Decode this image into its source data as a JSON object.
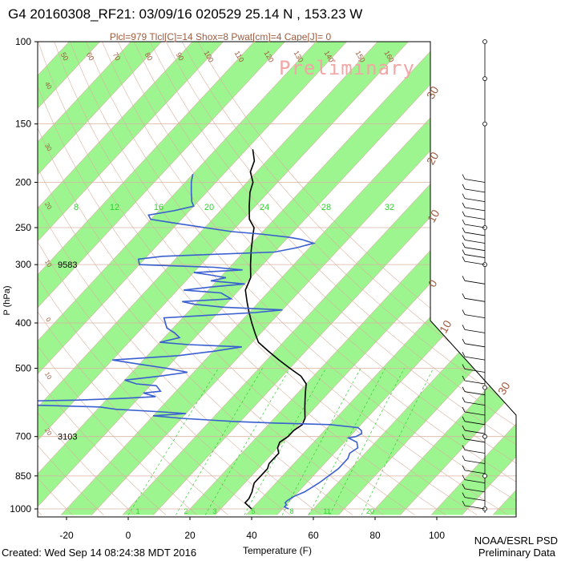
{
  "chart_data": {
    "type": "line",
    "title": "G4 20160308_RF21: 03/09/16 020529  25.14 N , 153.23 W",
    "subtitle": "Plcl=979 Tlcl[C]=14 Shox=8 Pwat[cm]=4 Cape[J]= 0",
    "watermark": "Preliminary",
    "xlabel": "Temperature (F)",
    "ylabel": "P (hPa)",
    "xlim": [
      -28,
      108
    ],
    "ylim": [
      1030,
      100
    ],
    "y_scale": "log",
    "x_ticks": [
      -20,
      0,
      20,
      40,
      60,
      80,
      100
    ],
    "y_ticks": [
      100,
      150,
      200,
      250,
      300,
      400,
      500,
      700,
      850,
      1000
    ],
    "height_labels": [
      {
        "p": 300,
        "text": "9583"
      },
      {
        "p": 700,
        "text": "3103"
      }
    ],
    "mixing_ratio_labels": [
      "1",
      "2",
      "3",
      "5",
      "8",
      "11",
      "20"
    ],
    "isotherm_labels_top": [
      "50",
      "60",
      "70",
      "80",
      "90",
      "100",
      "110",
      "120",
      "130",
      "140",
      "150",
      "160"
    ],
    "isotherm_labels_right": [
      "30",
      "20",
      "10",
      "0",
      "10",
      "30"
    ],
    "green_labels": [
      "8",
      "12",
      "16",
      "20",
      "24",
      "28",
      "32"
    ],
    "adiabat_labels_left": [
      "40",
      "30",
      "20",
      "10",
      "0",
      "10",
      "20"
    ],
    "series": [
      {
        "name": "Temperature",
        "color": "#000000",
        "points": [
          [
            40,
            1000
          ],
          [
            38,
            985
          ],
          [
            36,
            970
          ],
          [
            36,
            950
          ],
          [
            35,
            920
          ],
          [
            34,
            900
          ],
          [
            33,
            880
          ],
          [
            33,
            850
          ],
          [
            33,
            820
          ],
          [
            32,
            800
          ],
          [
            32,
            780
          ],
          [
            32,
            760
          ],
          [
            30,
            740
          ],
          [
            29,
            720
          ],
          [
            30,
            700
          ],
          [
            30,
            680
          ],
          [
            31,
            660
          ],
          [
            30,
            640
          ],
          [
            28,
            620
          ],
          [
            26,
            600
          ],
          [
            24,
            580
          ],
          [
            22,
            560
          ],
          [
            20,
            540
          ],
          [
            16,
            520
          ],
          [
            10,
            500
          ],
          [
            4,
            480
          ],
          [
            -2,
            460
          ],
          [
            -8,
            440
          ],
          [
            -12,
            420
          ],
          [
            -16,
            400
          ],
          [
            -20,
            380
          ],
          [
            -24,
            360
          ],
          [
            -28,
            340
          ],
          [
            -30,
            320
          ],
          [
            -34,
            300
          ],
          [
            -38,
            280
          ],
          [
            -42,
            260
          ],
          [
            -44,
            250
          ],
          [
            -48,
            240
          ],
          [
            -52,
            225
          ],
          [
            -56,
            210
          ],
          [
            -58,
            200
          ],
          [
            -62,
            190
          ],
          [
            -64,
            180
          ],
          [
            -68,
            170
          ]
        ]
      },
      {
        "name": "Dewpoint",
        "color": "#3a5fd0",
        "points": [
          [
            52,
            1000
          ],
          [
            50,
            990
          ],
          [
            50,
            980
          ],
          [
            49,
            970
          ],
          [
            49,
            960
          ],
          [
            50,
            940
          ],
          [
            52,
            920
          ],
          [
            53,
            900
          ],
          [
            54,
            880
          ],
          [
            55,
            850
          ],
          [
            56,
            820
          ],
          [
            56,
            800
          ],
          [
            56,
            780
          ],
          [
            55,
            760
          ],
          [
            56,
            740
          ],
          [
            54,
            720
          ],
          [
            50,
            705
          ],
          [
            52,
            700
          ],
          [
            53,
            690
          ],
          [
            52,
            680
          ],
          [
            50,
            670
          ],
          [
            40,
            660
          ],
          [
            22,
            655
          ],
          [
            8,
            650
          ],
          [
            -10,
            640
          ],
          [
            -20,
            632
          ],
          [
            -10,
            625
          ],
          [
            -18,
            620
          ],
          [
            -34,
            612
          ],
          [
            -40,
            605
          ],
          [
            -60,
            600
          ],
          [
            -80,
            590
          ],
          [
            -50,
            585
          ],
          [
            -35,
            580
          ],
          [
            -25,
            575
          ],
          [
            -30,
            565
          ],
          [
            -25,
            560
          ],
          [
            -28,
            545
          ],
          [
            -35,
            540
          ],
          [
            -40,
            530
          ],
          [
            -30,
            520
          ],
          [
            -22,
            510
          ],
          [
            -30,
            500
          ],
          [
            -40,
            490
          ],
          [
            -50,
            480
          ],
          [
            -30,
            470
          ],
          [
            -20,
            460
          ],
          [
            -12,
            450
          ],
          [
            -30,
            445
          ],
          [
            -40,
            440
          ],
          [
            -35,
            430
          ],
          [
            -38,
            420
          ],
          [
            -42,
            410
          ],
          [
            -44,
            400
          ],
          [
            -46,
            390
          ],
          [
            -18,
            380
          ],
          [
            -10,
            375
          ],
          [
            -30,
            370
          ],
          [
            -40,
            365
          ],
          [
            -45,
            360
          ],
          [
            -30,
            355
          ],
          [
            -35,
            345
          ],
          [
            -48,
            340
          ],
          [
            -40,
            335
          ],
          [
            -30,
            330
          ],
          [
            -42,
            325
          ],
          [
            -38,
            320
          ],
          [
            -45,
            315
          ],
          [
            -50,
            312
          ],
          [
            -35,
            308
          ],
          [
            -45,
            304
          ],
          [
            -70,
            300
          ],
          [
            -72,
            292
          ],
          [
            -65,
            288
          ],
          [
            -30,
            282
          ],
          [
            -24,
            276
          ],
          [
            -20,
            270
          ],
          [
            -25,
            265
          ],
          [
            -30,
            262
          ],
          [
            -40,
            258
          ],
          [
            -50,
            255
          ],
          [
            -60,
            250
          ],
          [
            -70,
            245
          ],
          [
            -80,
            240
          ],
          [
            -82,
            235
          ],
          [
            -75,
            230
          ],
          [
            -70,
            225
          ],
          [
            -72,
            220
          ],
          [
            -75,
            210
          ],
          [
            -78,
            200
          ],
          [
            -80,
            192
          ]
        ]
      }
    ],
    "wind_barb_levels": [
      300,
      330,
      360,
      390,
      420,
      450,
      480,
      510,
      540,
      570,
      600,
      630,
      660,
      690,
      720,
      760,
      800,
      840,
      880,
      920,
      960,
      1000,
      200,
      210,
      220,
      230,
      240,
      250,
      260,
      270,
      280,
      290
    ],
    "wind_marker_levels": [
      100,
      120,
      150,
      250,
      300,
      550,
      700,
      850,
      1000
    ],
    "footer_left": "Created: Wed Sep 14 08:24:38 MDT 2016",
    "footer_right_1": "NOAA/ESRL PSD",
    "footer_right_2": "Preliminary Data",
    "colors": {
      "green_band": "#9cf58f",
      "temperature": "#000000",
      "dewpoint": "#3a5fd0",
      "grid": "#d9b3a0",
      "subtitle": "#a05a3c",
      "watermark": "#f2a6a6",
      "green_label": "#2fd02f"
    }
  }
}
